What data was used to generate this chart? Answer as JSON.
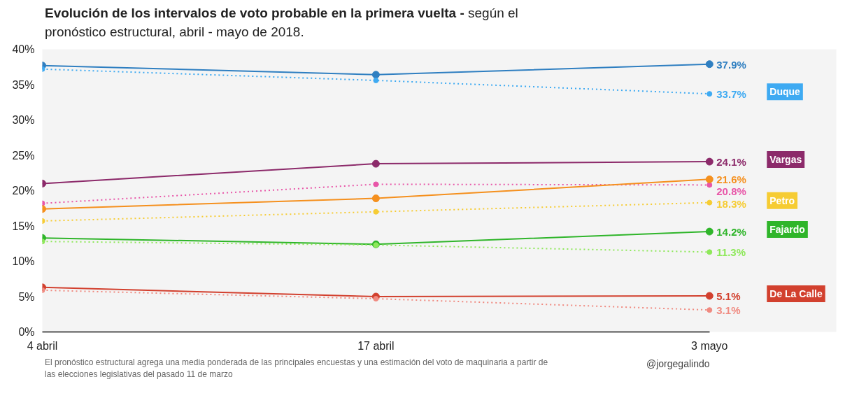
{
  "chart_data": {
    "type": "line",
    "title": "Evolución de los intervalos de voto probable en la primera vuelta -",
    "subtitle": "según el pronóstico estructural, abril - mayo de 2018.",
    "categories": [
      "4 abril",
      "17 abril",
      "3 mayo"
    ],
    "ylim": [
      0,
      40
    ],
    "yticks": [
      {
        "value": 0,
        "label": "0%"
      },
      {
        "value": 5,
        "label": "5%"
      },
      {
        "value": 10,
        "label": "10%"
      },
      {
        "value": 15,
        "label": "15%"
      },
      {
        "value": 20,
        "label": "20%"
      },
      {
        "value": 25,
        "label": "25%"
      },
      {
        "value": 30,
        "label": "30%"
      },
      {
        "value": 35,
        "label": "35%"
      },
      {
        "value": 40,
        "label": "40%"
      }
    ],
    "grid": false,
    "legend": false,
    "marker": "circle",
    "series": [
      {
        "color": "#2f7fc1",
        "line_style": "solid",
        "values": [
          37.7,
          36.4,
          37.9
        ],
        "value_labels": [
          null,
          null,
          "37.9%"
        ]
      },
      {
        "name": "Duque",
        "color": "#3eaaf2",
        "line_style": "dotted",
        "values": [
          37.2,
          35.6,
          33.7
        ],
        "value_labels": [
          null,
          null,
          "33.7%"
        ]
      },
      {
        "name": "Vargas",
        "color": "#8c2a6a",
        "line_style": "solid",
        "values": [
          21.0,
          23.8,
          24.1
        ],
        "value_labels": [
          null,
          null,
          "24.1%"
        ]
      },
      {
        "color": "#e856a8",
        "line_style": "dotted",
        "values": [
          18.2,
          20.9,
          20.8
        ],
        "value_labels": [
          null,
          null,
          "20.8%"
        ]
      },
      {
        "color": "#f5901e",
        "line_style": "solid",
        "values": [
          17.4,
          18.9,
          21.6
        ],
        "value_labels": [
          null,
          null,
          "21.6%"
        ]
      },
      {
        "name": "Petro",
        "color": "#f6cc33",
        "line_style": "dotted",
        "values": [
          15.7,
          17.0,
          18.3
        ],
        "value_labels": [
          null,
          null,
          "18.3%"
        ]
      },
      {
        "name": "Fajardo",
        "color": "#2fb52a",
        "line_style": "solid",
        "values": [
          13.3,
          12.4,
          14.2
        ],
        "value_labels": [
          null,
          null,
          "14.2%"
        ]
      },
      {
        "color": "#8ee85a",
        "line_style": "dotted",
        "values": [
          12.8,
          12.3,
          11.3
        ],
        "value_labels": [
          null,
          null,
          "11.3%"
        ]
      },
      {
        "name": "De La Calle",
        "color": "#d2402e",
        "line_style": "solid",
        "values": [
          6.3,
          5.0,
          5.1
        ],
        "value_labels": [
          null,
          null,
          "5.1%"
        ]
      },
      {
        "color": "#f08a80",
        "line_style": "dotted",
        "values": [
          5.9,
          4.7,
          3.1
        ],
        "value_labels": [
          null,
          null,
          "3.1%"
        ]
      }
    ],
    "annotations": [
      "El pronóstico estructural agrega una media ponderada de las principales encuestas y una estimación del voto de maquinaria a partir de las elecciones legislativas del pasado 11 de marzo",
      "@jorgegalindo"
    ]
  }
}
